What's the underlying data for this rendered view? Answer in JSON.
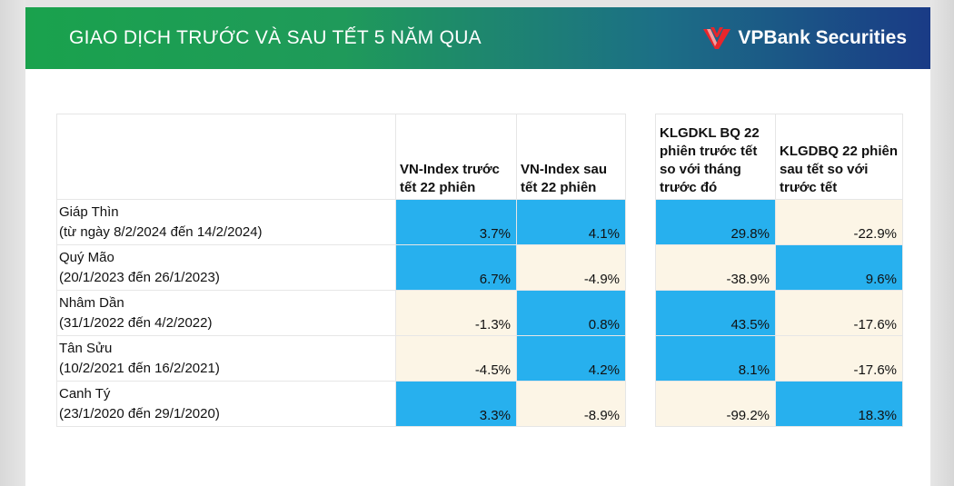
{
  "header": {
    "title": "GIAO DỊCH TRƯỚC VÀ SAU TẾT 5 NĂM QUA",
    "brand": "VPBank Securities",
    "brand_icon": "vpbank-logo-icon"
  },
  "colors": {
    "highlight": "#27b0ee",
    "neutral": "#fcf5e6"
  },
  "table": {
    "headers": {
      "period": "",
      "before_index": "VN-Index trước tết 22 phiên",
      "after_index": "VN-Index sau tết 22 phiên",
      "vol_before": "KLGDKL BQ 22 phiên trước tết so với tháng trước đó",
      "vol_after": "KLGDBQ 22 phiên sau tết so với trước tết"
    },
    "rows": [
      {
        "name": "Giáp Thìn",
        "dates": "(từ ngày  8/2/2024 đến 14/2/2024)",
        "before": "3.7%",
        "after": "4.1%",
        "vol_before": "29.8%",
        "vol_after": "-22.9%"
      },
      {
        "name": "Quý Mão",
        "dates": "(20/1/2023 đến 26/1/2023)",
        "before": "6.7%",
        "after": "-4.9%",
        "vol_before": "-38.9%",
        "vol_after": "9.6%"
      },
      {
        "name": "Nhâm Dần",
        "dates": "(31/1/2022 đến 4/2/2022)",
        "before": "-1.3%",
        "after": "0.8%",
        "vol_before": "43.5%",
        "vol_after": "-17.6%"
      },
      {
        "name": "Tân Sửu",
        "dates": "(10/2/2021 đến 16/2/2021)",
        "before": "-4.5%",
        "after": "4.2%",
        "vol_before": "8.1%",
        "vol_after": "-17.6%"
      },
      {
        "name": "Canh Tý",
        "dates": "(23/1/2020 đến 29/1/2020)",
        "before": "3.3%",
        "after": "-8.9%",
        "vol_before": "-99.2%",
        "vol_after": "18.3%"
      }
    ]
  }
}
